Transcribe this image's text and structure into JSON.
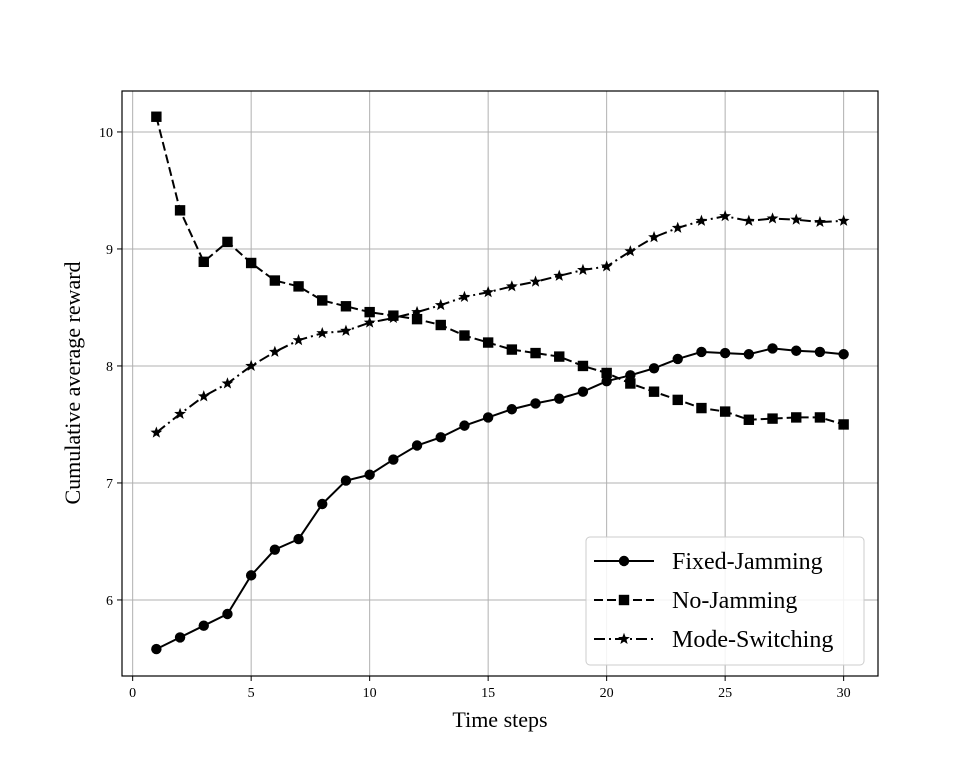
{
  "chart_data": {
    "type": "line",
    "title": "",
    "xlabel": "Time steps",
    "ylabel": "Cumulative average reward",
    "xlim": [
      -0.45,
      31.45
    ],
    "ylim": [
      5.35,
      10.35
    ],
    "xticks": [
      0,
      5,
      10,
      15,
      20,
      25,
      30
    ],
    "yticks": [
      6,
      7,
      8,
      9,
      10
    ],
    "grid": true,
    "legend_position": "lower-right",
    "x": [
      1,
      2,
      3,
      4,
      5,
      6,
      7,
      8,
      9,
      10,
      11,
      12,
      13,
      14,
      15,
      16,
      17,
      18,
      19,
      20,
      21,
      22,
      23,
      24,
      25,
      26,
      27,
      28,
      29,
      30
    ],
    "series": [
      {
        "name": "Fixed-Jamming",
        "linestyle": "solid",
        "marker": "circle",
        "color": "#000000",
        "values": [
          5.58,
          5.68,
          5.78,
          5.88,
          6.21,
          6.43,
          6.52,
          6.82,
          7.02,
          7.07,
          7.2,
          7.32,
          7.39,
          7.49,
          7.56,
          7.63,
          7.68,
          7.72,
          7.78,
          7.87,
          7.92,
          7.98,
          8.06,
          8.12,
          8.11,
          8.1,
          8.15,
          8.13,
          8.12,
          8.1
        ]
      },
      {
        "name": "No-Jamming",
        "linestyle": "dashed",
        "marker": "square",
        "color": "#000000",
        "values": [
          10.13,
          9.33,
          8.89,
          9.06,
          8.88,
          8.73,
          8.68,
          8.56,
          8.51,
          8.46,
          8.43,
          8.4,
          8.35,
          8.26,
          8.2,
          8.14,
          8.11,
          8.08,
          8.0,
          7.94,
          7.85,
          7.78,
          7.71,
          7.64,
          7.61,
          7.54,
          7.55,
          7.56,
          7.56,
          7.5
        ]
      },
      {
        "name": "Mode-Switching",
        "linestyle": "dashdot",
        "marker": "star",
        "color": "#000000",
        "values": [
          7.43,
          7.59,
          7.74,
          7.85,
          8.0,
          8.12,
          8.22,
          8.28,
          8.3,
          8.37,
          8.41,
          8.46,
          8.52,
          8.59,
          8.63,
          8.68,
          8.72,
          8.77,
          8.82,
          8.85,
          8.98,
          9.1,
          9.18,
          9.24,
          9.28,
          9.24,
          9.26,
          9.25,
          9.23,
          9.24
        ]
      }
    ]
  }
}
